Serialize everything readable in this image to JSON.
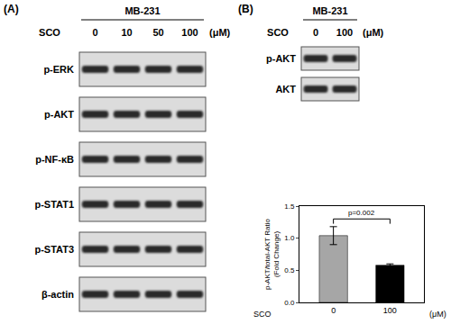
{
  "figure": {
    "panel_a": {
      "label": "(A)",
      "cell_line": "MB-231",
      "treatment": "SCO",
      "doses": [
        "0",
        "10",
        "50",
        "100"
      ],
      "unit": "(μM)",
      "blots": [
        "p-ERK",
        "p-AKT",
        "p-NF-κB",
        "p-STAT1",
        "p-STAT3",
        "β-actin"
      ]
    },
    "panel_b": {
      "label": "(B)",
      "cell_line": "MB-231",
      "treatment": "SCO",
      "doses": [
        "0",
        "100"
      ],
      "unit": "(μM)",
      "blots": [
        "p-AKT",
        "AKT"
      ]
    }
  },
  "chart_data": {
    "type": "bar",
    "categories": [
      "0",
      "100"
    ],
    "values": [
      1.04,
      0.58
    ],
    "errors": [
      0.14,
      0.02
    ],
    "colors": [
      "#a6a6a6",
      "#000000"
    ],
    "xlabel": "SCO",
    "x_unit": "(μM)",
    "ylabel": [
      "p-AKT/total-AKT Ratio",
      "(Fold Change)"
    ],
    "ylim": [
      0,
      1.5
    ],
    "yticks": [
      {
        "value": 0,
        "label": "0.0"
      },
      {
        "value": 0.5,
        "label": "0.5"
      },
      {
        "value": 1,
        "label": "1.0"
      },
      {
        "value": 1.5,
        "label": "1.5"
      }
    ],
    "grid": false,
    "annotations": [
      {
        "text": "p=0.002",
        "between": [
          "0",
          "100"
        ]
      }
    ]
  }
}
